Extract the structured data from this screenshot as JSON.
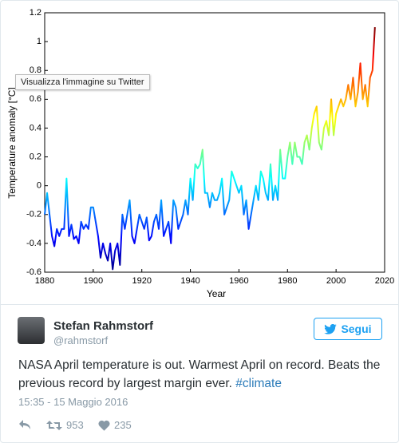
{
  "chart_data": {
    "type": "line",
    "xlabel": "Year",
    "ylabel": "Temperature anomaly [°C]",
    "x": [
      1880,
      1881,
      1882,
      1883,
      1884,
      1885,
      1886,
      1887,
      1888,
      1889,
      1890,
      1891,
      1892,
      1893,
      1894,
      1895,
      1896,
      1897,
      1898,
      1899,
      1900,
      1901,
      1902,
      1903,
      1904,
      1905,
      1906,
      1907,
      1908,
      1909,
      1910,
      1911,
      1912,
      1913,
      1914,
      1915,
      1916,
      1917,
      1918,
      1919,
      1920,
      1921,
      1922,
      1923,
      1924,
      1925,
      1926,
      1927,
      1928,
      1929,
      1930,
      1931,
      1932,
      1933,
      1934,
      1935,
      1936,
      1937,
      1938,
      1939,
      1940,
      1941,
      1942,
      1943,
      1944,
      1945,
      1946,
      1947,
      1948,
      1949,
      1950,
      1951,
      1952,
      1953,
      1954,
      1955,
      1956,
      1957,
      1958,
      1959,
      1960,
      1961,
      1962,
      1963,
      1964,
      1965,
      1966,
      1967,
      1968,
      1969,
      1970,
      1971,
      1972,
      1973,
      1974,
      1975,
      1976,
      1977,
      1978,
      1979,
      1980,
      1981,
      1982,
      1983,
      1984,
      1985,
      1986,
      1987,
      1988,
      1989,
      1990,
      1991,
      1992,
      1993,
      1994,
      1995,
      1996,
      1997,
      1998,
      1999,
      2000,
      2001,
      2002,
      2003,
      2004,
      2005,
      2006,
      2007,
      2008,
      2009,
      2010,
      2011,
      2012,
      2013,
      2014,
      2015,
      2016
    ],
    "values": [
      -0.2,
      -0.05,
      -0.2,
      -0.35,
      -0.42,
      -0.3,
      -0.35,
      -0.3,
      -0.3,
      0.05,
      -0.35,
      -0.27,
      -0.37,
      -0.35,
      -0.4,
      -0.25,
      -0.3,
      -0.27,
      -0.3,
      -0.15,
      -0.15,
      -0.25,
      -0.35,
      -0.5,
      -0.4,
      -0.47,
      -0.52,
      -0.4,
      -0.58,
      -0.45,
      -0.4,
      -0.55,
      -0.2,
      -0.3,
      -0.2,
      -0.1,
      -0.35,
      -0.4,
      -0.3,
      -0.2,
      -0.25,
      -0.3,
      -0.22,
      -0.38,
      -0.35,
      -0.25,
      -0.2,
      -0.3,
      -0.1,
      -0.35,
      -0.3,
      -0.25,
      -0.4,
      -0.1,
      -0.15,
      -0.3,
      -0.25,
      -0.2,
      -0.1,
      -0.2,
      0.05,
      -0.1,
      0.15,
      0.12,
      0.15,
      0.25,
      -0.05,
      -0.05,
      -0.15,
      -0.05,
      -0.1,
      -0.1,
      -0.05,
      0.05,
      -0.2,
      -0.15,
      -0.1,
      0.1,
      0.05,
      0.0,
      -0.05,
      0.0,
      -0.2,
      -0.1,
      -0.3,
      -0.2,
      -0.1,
      0.0,
      -0.1,
      0.1,
      0.05,
      -0.05,
      -0.1,
      0.15,
      -0.1,
      0.0,
      -0.1,
      0.25,
      0.05,
      0.05,
      0.2,
      0.3,
      0.15,
      0.3,
      0.2,
      0.2,
      0.15,
      0.3,
      0.35,
      0.25,
      0.4,
      0.5,
      0.55,
      0.3,
      0.25,
      0.4,
      0.45,
      0.35,
      0.6,
      0.35,
      0.5,
      0.55,
      0.6,
      0.55,
      0.6,
      0.7,
      0.6,
      0.75,
      0.55,
      0.65,
      0.85,
      0.6,
      0.7,
      0.55,
      0.75,
      0.8,
      1.1
    ],
    "colormap": "jet",
    "xlim": [
      1880,
      2020
    ],
    "xticks": [
      1880,
      1900,
      1920,
      1940,
      1960,
      1980,
      2000,
      2020
    ],
    "ylim": [
      -0.6,
      1.2
    ],
    "yticks": [
      -0.6,
      -0.4,
      -0.2,
      0,
      0.2,
      0.4,
      0.6,
      0.8,
      1,
      1.2
    ]
  },
  "tooltip": "Visualizza l'immagine su Twitter",
  "tweet": {
    "author_name": "Stefan Rahmstorf",
    "author_handle": "@rahmstorf",
    "follow_label": "Segui",
    "text": "NASA April temperature is out. Warmest April on record. Beats the previous record by largest margin ever.",
    "hashtag": "#climate",
    "timestamp": "15:35 - 15 Maggio 2016",
    "retweets": "953",
    "likes": "235"
  }
}
